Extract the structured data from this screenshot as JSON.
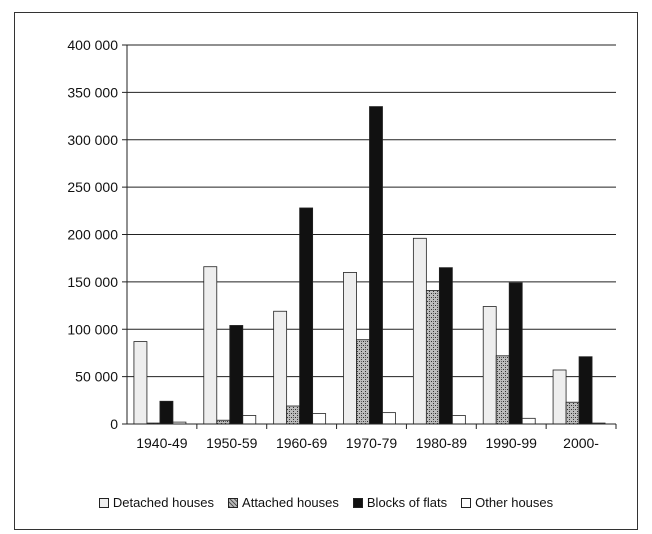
{
  "chart_data": {
    "type": "bar",
    "categories": [
      "1940-49",
      "1950-59",
      "1960-69",
      "1970-79",
      "1980-89",
      "1990-99",
      "2000-"
    ],
    "series": [
      {
        "name": "Detached houses",
        "values": [
          87000,
          166000,
          119000,
          160000,
          196000,
          124000,
          57000
        ],
        "color": "#eeeeee"
      },
      {
        "name": "Attached houses",
        "values": [
          1000,
          4000,
          19000,
          89000,
          141000,
          72000,
          23000
        ],
        "color": "#8f8f8f"
      },
      {
        "name": "Blocks of flats",
        "values": [
          24000,
          104000,
          228000,
          335000,
          165000,
          149000,
          71000
        ],
        "color": "#111111"
      },
      {
        "name": "Other houses",
        "values": [
          2000,
          9000,
          11000,
          12000,
          9000,
          6000,
          1000
        ],
        "color": "#ffffff"
      }
    ],
    "yticks": [
      "0",
      "50 000",
      "100 000",
      "150 000",
      "200 000",
      "250 000",
      "300 000",
      "350 000",
      "400 000"
    ],
    "ylim": [
      0,
      400000
    ],
    "grid": true,
    "legend_position": "bottom"
  }
}
